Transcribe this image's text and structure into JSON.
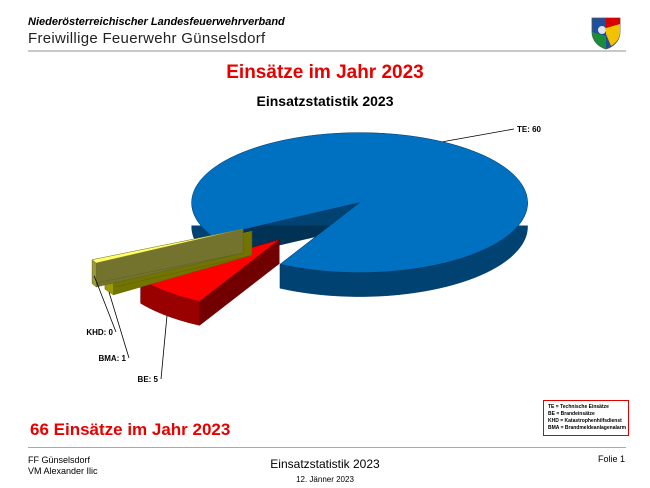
{
  "header": {
    "organization": "Niederösterreichischer Landesfeuerwehrverband",
    "department": "Freiwillige Feuerwehr Günselsdorf"
  },
  "main_title": "Einsätze im Jahr 2023",
  "summary": "66 Einsätze im Jahr 2023",
  "legend": {
    "border_color": "#e00000",
    "lines": [
      "TE = Technische Einsätze",
      "BE = Brandeinsätze",
      "KHD = Katastrophenhilfsdienst",
      "BMA = Brandmeldeanlagenalarm"
    ]
  },
  "footer": {
    "org_line1": "FF Günselsdorf",
    "org_line2": "VM Alexander Ilic",
    "title": "Einsatzstatistik 2023",
    "date": "12. Jänner 2023",
    "slide": "Folie 1"
  },
  "colors": {
    "title_red": "#e60000",
    "te": "#0070c0",
    "be": "#ff0000",
    "bma": "#ffff00",
    "khd": "#ffff66"
  },
  "chart_data": {
    "type": "pie",
    "title": "Einsatzstatistik 2023",
    "style": "3d-exploded",
    "slices": [
      {
        "name": "TE",
        "value": 60,
        "label": "TE: 60",
        "color": "#0070c0"
      },
      {
        "name": "BE",
        "value": 5,
        "label": "BE: 5",
        "color": "#ff0000"
      },
      {
        "name": "BMA",
        "value": 1,
        "label": "BMA: 1",
        "color": "#ffff00"
      },
      {
        "name": "KHD",
        "value": 0,
        "label": "KHD: 0",
        "color": "#ffff66"
      }
    ]
  }
}
